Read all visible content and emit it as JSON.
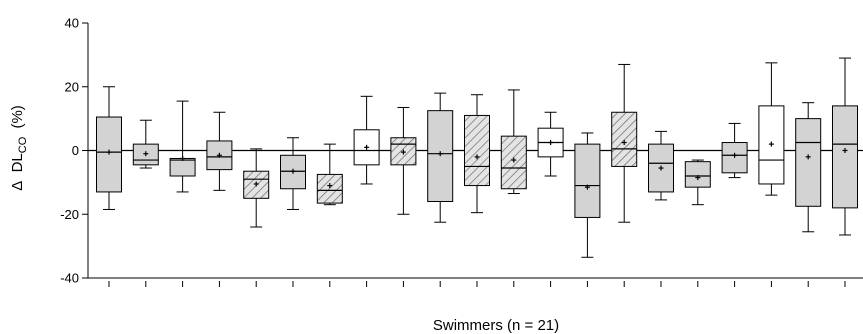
{
  "chart_data": {
    "type": "boxplot",
    "xlabel": "Swimmers (n = 21)",
    "ylabel": {
      "delta": "Δ",
      "main": "DL",
      "sub": "CO",
      "unit": "(%)"
    },
    "ylim": [
      -40,
      40
    ],
    "yticks": [
      40,
      20,
      0,
      -20,
      -40
    ],
    "reference_line": 0,
    "grid": false,
    "fill_styles": {
      "grey": "#d3d3d3",
      "white": "#ffffff",
      "hatched": "hatched"
    },
    "boxes": [
      {
        "q1": -13,
        "median": -0.5,
        "q3": 10.5,
        "whislo": -18.5,
        "whishi": 20,
        "mean": -0.5,
        "fill": "grey"
      },
      {
        "q1": -4.5,
        "median": -3,
        "q3": 2,
        "whislo": -5.5,
        "whishi": 9.5,
        "mean": -1,
        "fill": "grey"
      },
      {
        "q1": -8,
        "median": -3,
        "q3": -2.5,
        "whislo": -13,
        "whishi": 15.5,
        "mean": -2.5,
        "fill": "grey"
      },
      {
        "q1": -6,
        "median": -2,
        "q3": 3,
        "whislo": -12.5,
        "whishi": 12,
        "mean": -1.5,
        "fill": "grey"
      },
      {
        "q1": -15,
        "median": -9,
        "q3": -6.5,
        "whislo": -24,
        "whishi": 0.5,
        "mean": -10.5,
        "fill": "hatched"
      },
      {
        "q1": -12,
        "median": -6.5,
        "q3": -1.5,
        "whislo": -18.5,
        "whishi": 4,
        "mean": -6.5,
        "fill": "grey"
      },
      {
        "q1": -16.5,
        "median": -12.5,
        "q3": -7.5,
        "whislo": -17,
        "whishi": 2,
        "mean": -11,
        "fill": "hatched"
      },
      {
        "q1": -4.5,
        "median": 0,
        "q3": 6.5,
        "whislo": -10.5,
        "whishi": 17,
        "mean": 1,
        "fill": "white"
      },
      {
        "q1": -4.5,
        "median": 2,
        "q3": 4,
        "whislo": -20,
        "whishi": 13.5,
        "mean": -0.5,
        "fill": "hatched"
      },
      {
        "q1": -16,
        "median": -1,
        "q3": 12.5,
        "whislo": -22.5,
        "whishi": 18,
        "mean": -1,
        "fill": "grey"
      },
      {
        "q1": -11,
        "median": -5,
        "q3": 11,
        "whislo": -19.5,
        "whishi": 17.5,
        "mean": -2,
        "fill": "hatched"
      },
      {
        "q1": -12,
        "median": -5.5,
        "q3": 4.5,
        "whislo": -13.5,
        "whishi": 19,
        "mean": -3,
        "fill": "hatched"
      },
      {
        "q1": -2,
        "median": 2.5,
        "q3": 7,
        "whislo": -8,
        "whishi": 12,
        "mean": 2.5,
        "fill": "white"
      },
      {
        "q1": -21,
        "median": -11,
        "q3": 2,
        "whislo": -33.5,
        "whishi": 5.5,
        "mean": -11.5,
        "fill": "grey"
      },
      {
        "q1": -5,
        "median": 0.5,
        "q3": 12,
        "whislo": -22.5,
        "whishi": 27,
        "mean": 2.5,
        "fill": "hatched"
      },
      {
        "q1": -13,
        "median": -4,
        "q3": 2,
        "whislo": -15.5,
        "whishi": 6,
        "mean": -5.5,
        "fill": "grey"
      },
      {
        "q1": -11.5,
        "median": -8,
        "q3": -3.5,
        "whislo": -17,
        "whishi": -3,
        "mean": -8.5,
        "fill": "grey"
      },
      {
        "q1": -7,
        "median": -1.5,
        "q3": 2.5,
        "whislo": -8.5,
        "whishi": 8.5,
        "mean": -1.5,
        "fill": "grey"
      },
      {
        "q1": -10.5,
        "median": -3,
        "q3": 14,
        "whislo": -14,
        "whishi": 27.5,
        "mean": 2,
        "fill": "white"
      },
      {
        "q1": -17.5,
        "median": 2.5,
        "q3": 10,
        "whislo": -25.5,
        "whishi": 15,
        "mean": -2,
        "fill": "grey"
      },
      {
        "q1": -18,
        "median": 2,
        "q3": 14,
        "whislo": -26.5,
        "whishi": 29,
        "mean": 0,
        "fill": "grey"
      }
    ]
  }
}
